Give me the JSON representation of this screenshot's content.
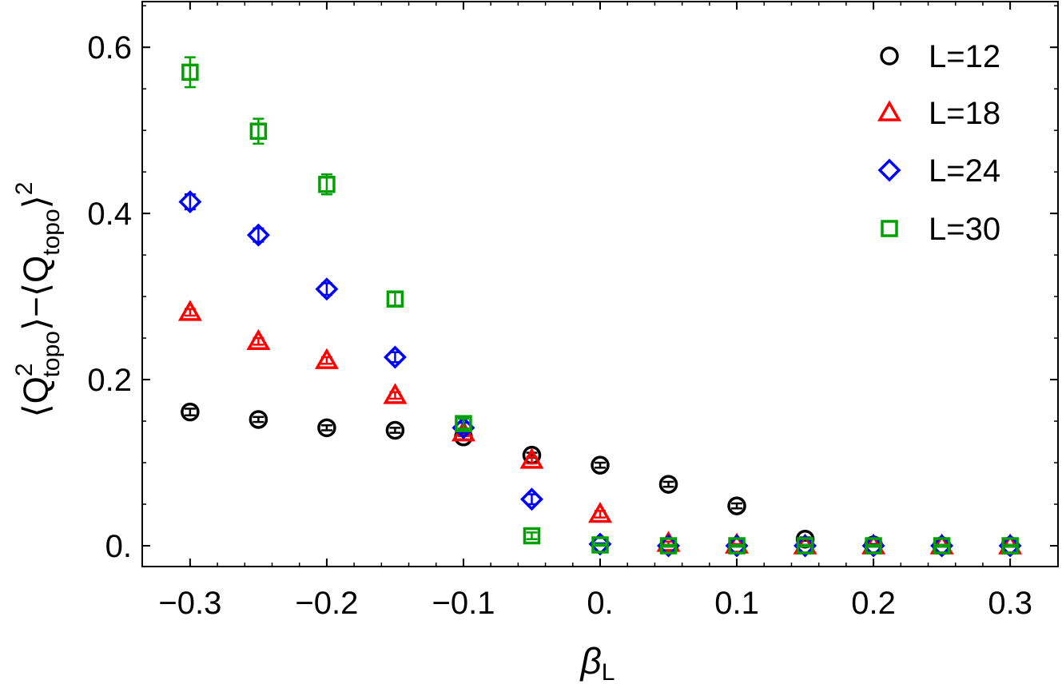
{
  "chart_data": {
    "type": "scatter",
    "xlabel_symbol": "β",
    "xlabel_subscript": "L",
    "ylabel": {
      "open": "⟨",
      "q": "Q",
      "sup": "2",
      "sub": "topo",
      "close_minus": "⟩−⟨",
      "q2": "Q",
      "sub2": "topo",
      "close": "⟩",
      "sup2": "2"
    },
    "xlim": [
      -0.335,
      0.335
    ],
    "ylim": [
      -0.025,
      0.655
    ],
    "xticks": [
      -0.3,
      -0.2,
      -0.1,
      0.0,
      0.1,
      0.2,
      0.3
    ],
    "xtick_labels": [
      "−0.3",
      "−0.2",
      "−0.1",
      "0.",
      "0.1",
      "0.2",
      "0.3"
    ],
    "yticks": [
      0.0,
      0.2,
      0.4,
      0.6
    ],
    "ytick_labels": [
      "0.",
      "0.2",
      "0.4",
      "0.6"
    ],
    "legend_position": "top-right",
    "series": [
      {
        "name": "L=12",
        "marker": "circle",
        "color": "#000000",
        "points": [
          {
            "x": -0.3,
            "y": 0.161,
            "err": 0.004
          },
          {
            "x": -0.25,
            "y": 0.152,
            "err": 0.003
          },
          {
            "x": -0.2,
            "y": 0.142,
            "err": 0.003
          },
          {
            "x": -0.15,
            "y": 0.139,
            "err": 0.003
          },
          {
            "x": -0.1,
            "y": 0.131,
            "err": 0.003
          },
          {
            "x": -0.05,
            "y": 0.109,
            "err": 0.003
          },
          {
            "x": 0.0,
            "y": 0.097,
            "err": 0.003
          },
          {
            "x": 0.05,
            "y": 0.074,
            "err": 0.003
          },
          {
            "x": 0.1,
            "y": 0.048,
            "err": 0.003
          },
          {
            "x": 0.15,
            "y": 0.008,
            "err": 0.002
          },
          {
            "x": 0.2,
            "y": 0.001,
            "err": 0.001
          },
          {
            "x": 0.25,
            "y": 0.0,
            "err": 0.001
          },
          {
            "x": 0.3,
            "y": 0.0,
            "err": 0.001
          }
        ]
      },
      {
        "name": "L=18",
        "marker": "triangle",
        "color": "#ff0000",
        "points": [
          {
            "x": -0.3,
            "y": 0.281,
            "err": 0.004
          },
          {
            "x": -0.25,
            "y": 0.246,
            "err": 0.004
          },
          {
            "x": -0.2,
            "y": 0.223,
            "err": 0.004
          },
          {
            "x": -0.15,
            "y": 0.181,
            "err": 0.004
          },
          {
            "x": -0.1,
            "y": 0.136,
            "err": 0.004
          },
          {
            "x": -0.05,
            "y": 0.103,
            "err": 0.004
          },
          {
            "x": 0.0,
            "y": 0.038,
            "err": 0.004
          },
          {
            "x": 0.05,
            "y": 0.003,
            "err": 0.002
          },
          {
            "x": 0.1,
            "y": 0.001,
            "err": 0.001
          },
          {
            "x": 0.15,
            "y": 0.0,
            "err": 0.001
          },
          {
            "x": 0.2,
            "y": 0.0,
            "err": 0.001
          },
          {
            "x": 0.25,
            "y": 0.0,
            "err": 0.001
          },
          {
            "x": 0.3,
            "y": 0.0,
            "err": 0.001
          }
        ]
      },
      {
        "name": "L=24",
        "marker": "diamond",
        "color": "#0000ff",
        "points": [
          {
            "x": -0.3,
            "y": 0.414,
            "err": 0.009
          },
          {
            "x": -0.25,
            "y": 0.374,
            "err": 0.008
          },
          {
            "x": -0.2,
            "y": 0.309,
            "err": 0.007
          },
          {
            "x": -0.15,
            "y": 0.227,
            "err": 0.006
          },
          {
            "x": -0.1,
            "y": 0.142,
            "err": 0.006
          },
          {
            "x": -0.05,
            "y": 0.056,
            "err": 0.006
          },
          {
            "x": 0.0,
            "y": 0.002,
            "err": 0.001
          },
          {
            "x": 0.05,
            "y": 0.0,
            "err": 0.001
          },
          {
            "x": 0.1,
            "y": 0.0,
            "err": 0.001
          },
          {
            "x": 0.15,
            "y": 0.0,
            "err": 0.001
          },
          {
            "x": 0.2,
            "y": 0.0,
            "err": 0.001
          },
          {
            "x": 0.25,
            "y": 0.0,
            "err": 0.001
          },
          {
            "x": 0.3,
            "y": 0.0,
            "err": 0.001
          }
        ]
      },
      {
        "name": "L=30",
        "marker": "square",
        "color": "#00a000",
        "points": [
          {
            "x": -0.3,
            "y": 0.57,
            "err": 0.018
          },
          {
            "x": -0.25,
            "y": 0.499,
            "err": 0.015
          },
          {
            "x": -0.2,
            "y": 0.435,
            "err": 0.012
          },
          {
            "x": -0.15,
            "y": 0.297,
            "err": 0.008
          },
          {
            "x": -0.1,
            "y": 0.147,
            "err": 0.006
          },
          {
            "x": -0.05,
            "y": 0.012,
            "err": 0.004
          },
          {
            "x": 0.0,
            "y": 0.001,
            "err": 0.001
          },
          {
            "x": 0.05,
            "y": 0.0,
            "err": 0.001
          },
          {
            "x": 0.1,
            "y": 0.0,
            "err": 0.001
          },
          {
            "x": 0.15,
            "y": 0.0,
            "err": 0.001
          },
          {
            "x": 0.2,
            "y": 0.0,
            "err": 0.001
          },
          {
            "x": 0.25,
            "y": 0.0,
            "err": 0.001
          },
          {
            "x": 0.3,
            "y": 0.0,
            "err": 0.001
          }
        ]
      }
    ]
  }
}
